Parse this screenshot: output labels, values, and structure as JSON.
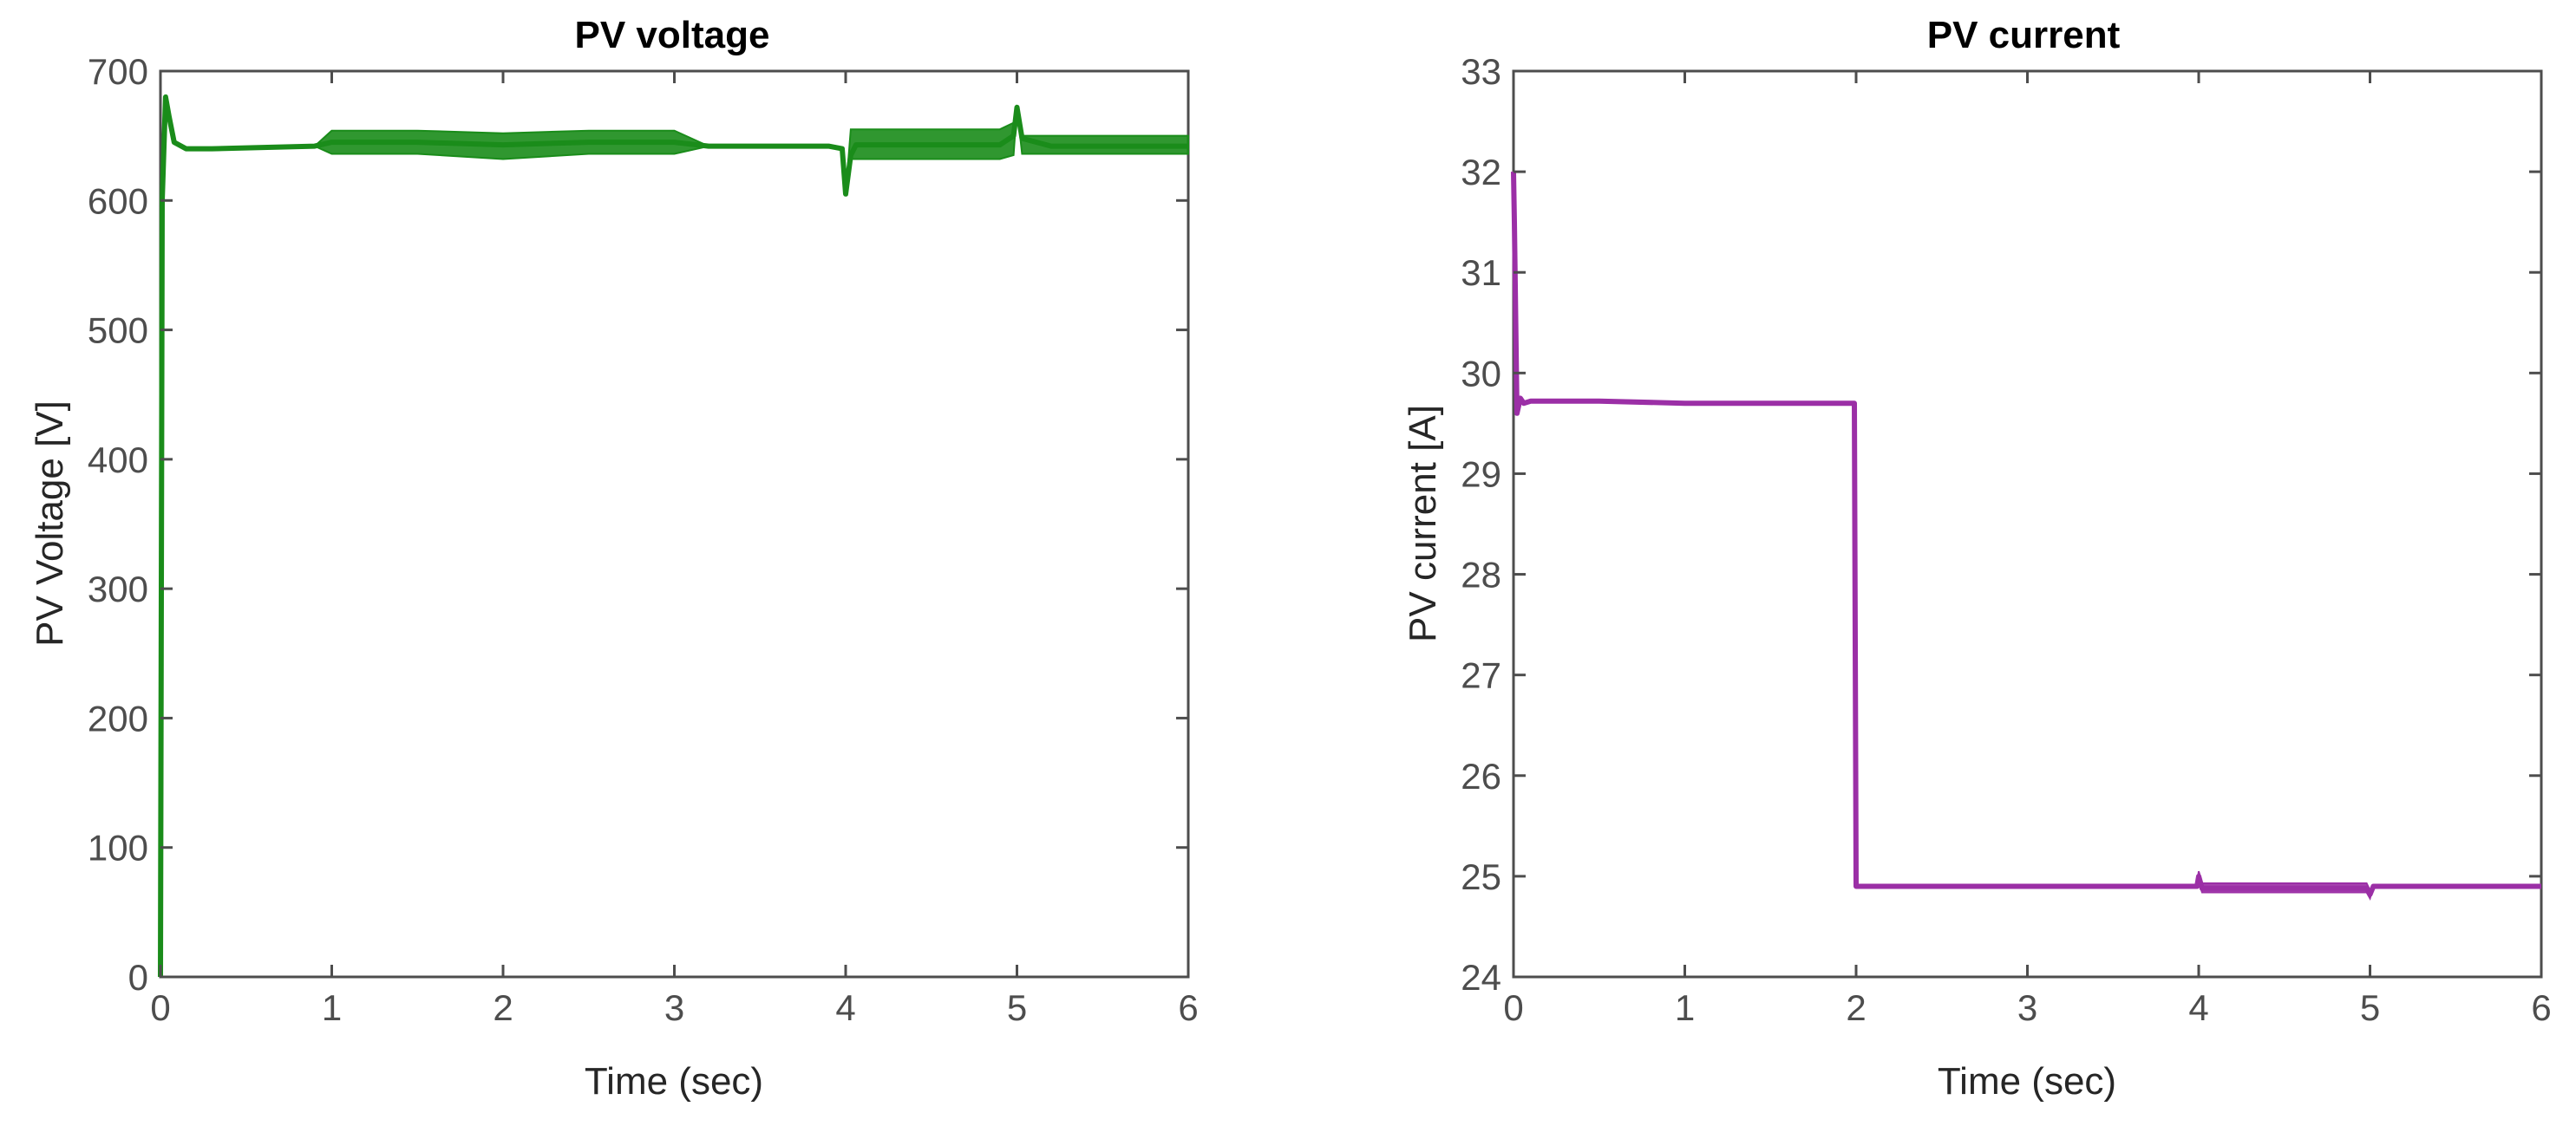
{
  "chart_data": [
    {
      "type": "line",
      "title": "PV voltage",
      "xlabel": "Time (sec)",
      "ylabel": "PV Voltage [V]",
      "xlim": [
        0,
        6
      ],
      "ylim": [
        0,
        700
      ],
      "xticks": [
        "0",
        "1",
        "2",
        "3",
        "4",
        "5",
        "6"
      ],
      "yticks": [
        "0",
        "100",
        "200",
        "300",
        "400",
        "500",
        "600",
        "700"
      ],
      "grid": false,
      "series": [
        {
          "color": "#1a8c1a",
          "x": [
            0,
            0.01,
            0.03,
            0.05,
            0.08,
            0.15,
            0.3,
            0.6,
            0.9,
            1.0,
            1.5,
            2.0,
            2.5,
            3.0,
            3.2,
            3.5,
            3.9,
            3.98,
            4.0,
            4.03,
            4.06,
            4.2,
            4.5,
            4.9,
            4.98,
            5.0,
            5.03,
            5.2,
            5.6,
            6.0
          ],
          "y": [
            0,
            600,
            680,
            665,
            645,
            640,
            640,
            641,
            642,
            645,
            645,
            643,
            645,
            645,
            642,
            642,
            642,
            640,
            605,
            635,
            643,
            643,
            643,
            643,
            650,
            672,
            648,
            642,
            642,
            642
          ],
          "band_min": [
            0,
            600,
            680,
            665,
            645,
            640,
            640,
            641,
            642,
            636,
            636,
            632,
            636,
            636,
            642,
            642,
            642,
            640,
            605,
            632,
            632,
            632,
            632,
            632,
            635,
            672,
            636,
            636,
            636,
            636
          ],
          "band_max": [
            0,
            600,
            680,
            665,
            645,
            640,
            640,
            641,
            642,
            654,
            654,
            652,
            654,
            654,
            642,
            642,
            642,
            640,
            605,
            655,
            655,
            655,
            655,
            655,
            660,
            672,
            650,
            650,
            650,
            650
          ]
        }
      ]
    },
    {
      "type": "line",
      "title": "PV current",
      "xlabel": "Time (sec)",
      "ylabel": "PV current [A]",
      "xlim": [
        0,
        6
      ],
      "ylim": [
        24,
        33
      ],
      "xticks": [
        "0",
        "1",
        "2",
        "3",
        "4",
        "5",
        "6"
      ],
      "yticks": [
        "24",
        "25",
        "26",
        "27",
        "28",
        "29",
        "30",
        "31",
        "32",
        "33"
      ],
      "grid": false,
      "series": [
        {
          "color": "#9b2fa6",
          "x": [
            0,
            0.005,
            0.02,
            0.04,
            0.06,
            0.1,
            0.5,
            1.0,
            1.5,
            1.99,
            2.0,
            2.01,
            2.5,
            3.0,
            3.5,
            3.99,
            4.0,
            4.02,
            4.5,
            4.98,
            5.0,
            5.02,
            5.5,
            6.0
          ],
          "y": [
            32.0,
            31.5,
            29.6,
            29.75,
            29.7,
            29.72,
            29.72,
            29.7,
            29.7,
            29.7,
            24.9,
            24.9,
            24.9,
            24.9,
            24.9,
            24.9,
            25.0,
            24.88,
            24.88,
            24.88,
            24.82,
            24.9,
            24.9,
            24.9
          ],
          "band_min": [
            32.0,
            31.5,
            29.6,
            29.75,
            29.7,
            29.72,
            29.72,
            29.7,
            29.7,
            29.7,
            24.9,
            24.9,
            24.9,
            24.9,
            24.9,
            24.9,
            24.95,
            24.84,
            24.84,
            24.84,
            24.78,
            24.9,
            24.9,
            24.9
          ],
          "band_max": [
            32.0,
            31.5,
            29.6,
            29.75,
            29.7,
            29.72,
            29.72,
            29.7,
            29.7,
            29.7,
            24.9,
            24.9,
            24.9,
            24.9,
            24.9,
            24.9,
            25.05,
            24.93,
            24.93,
            24.93,
            24.86,
            24.9,
            24.9,
            24.9
          ]
        }
      ]
    }
  ]
}
